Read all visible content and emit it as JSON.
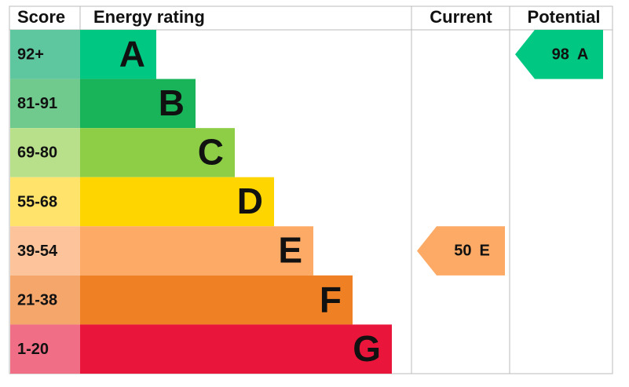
{
  "header": {
    "score": "Score",
    "rating": "Energy rating",
    "current": "Current",
    "potential": "Potential"
  },
  "bands": [
    {
      "range": "92+",
      "letter": "A",
      "color": "#00c781",
      "light": "#5fc7a0"
    },
    {
      "range": "81-91",
      "letter": "B",
      "color": "#19b459",
      "light": "#70ca8e"
    },
    {
      "range": "69-80",
      "letter": "C",
      "color": "#8dce46",
      "light": "#b8e08b"
    },
    {
      "range": "55-68",
      "letter": "D",
      "color": "#ffd500",
      "light": "#ffe36a"
    },
    {
      "range": "39-54",
      "letter": "E",
      "color": "#fcaa65",
      "light": "#fdc49b"
    },
    {
      "range": "21-38",
      "letter": "F",
      "color": "#ef8023",
      "light": "#f4a66b"
    },
    {
      "range": "1-20",
      "letter": "G",
      "color": "#e9153b",
      "light": "#f06e86"
    }
  ],
  "current": {
    "score": 50,
    "letter": "E"
  },
  "potential": {
    "score": 98,
    "letter": "A"
  }
}
